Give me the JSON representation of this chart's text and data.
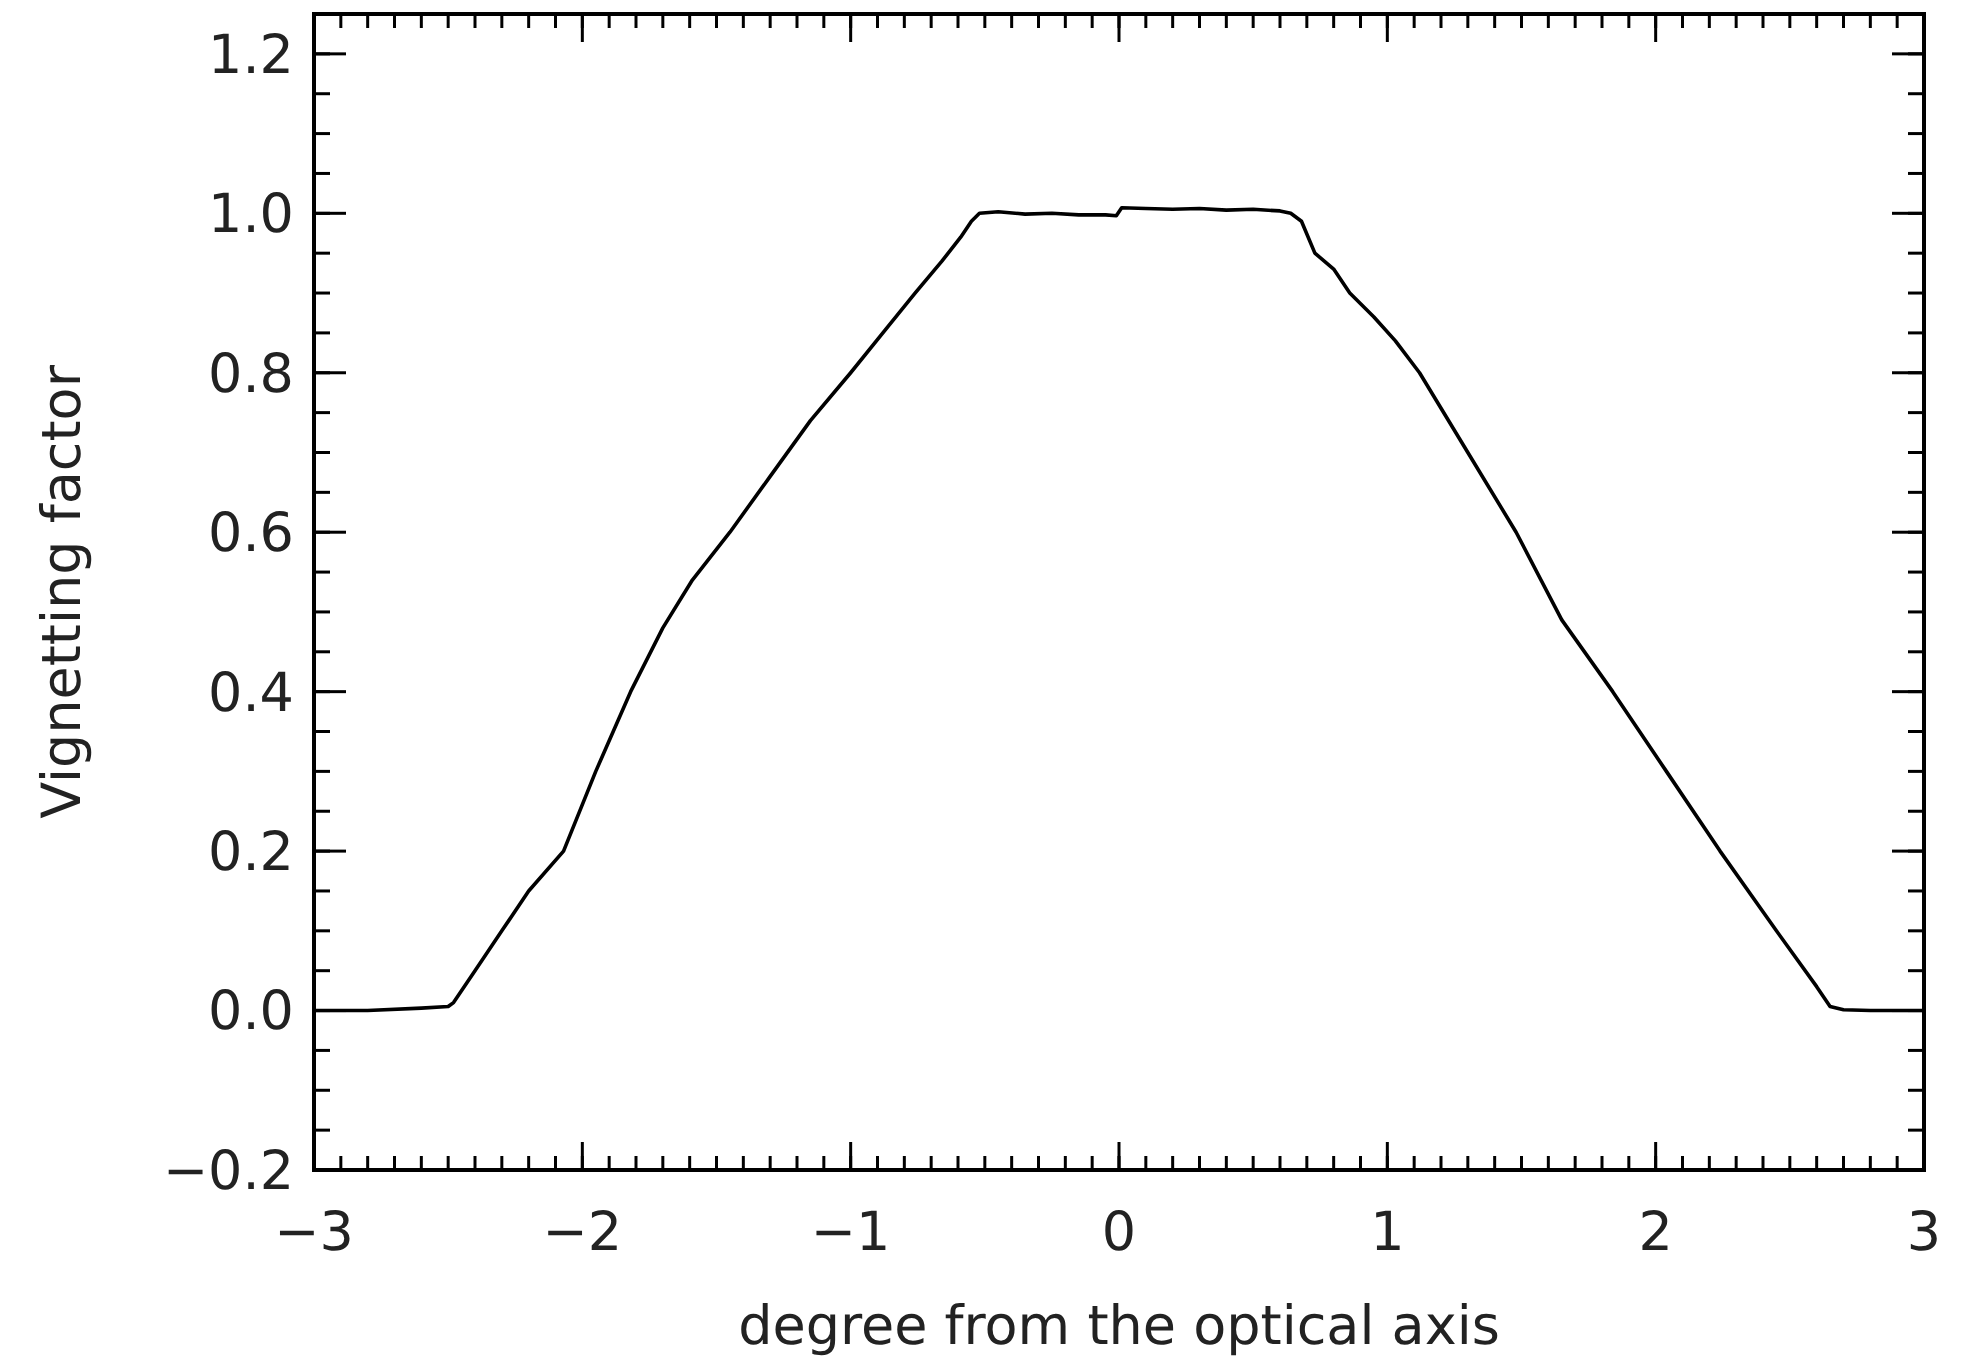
{
  "chart_data": {
    "type": "line",
    "xlabel": "degree from the optical axis",
    "ylabel": "Vignetting factor",
    "x": [
      -3,
      -2.8,
      -2.6,
      -2.5,
      -2.48,
      -2.4,
      -2.3,
      -2.2,
      -2.07,
      -1.95,
      -1.82,
      -1.7,
      -1.59,
      -1.45,
      -1.3,
      -1.15,
      -1,
      -0.88,
      -0.76,
      -0.66,
      -0.59,
      -0.55,
      -0.52,
      -0.45,
      -0.35,
      -0.25,
      -0.15,
      -0.05,
      -0.01,
      0.01,
      0.1,
      0.2,
      0.3,
      0.4,
      0.5,
      0.6,
      0.64,
      0.68,
      0.73,
      0.8,
      0.86,
      0.95,
      1.03,
      1.12,
      1.3,
      1.48,
      1.65,
      1.84,
      2.04,
      2.24,
      2.45,
      2.6,
      2.65,
      2.7,
      2.8,
      3
    ],
    "values": [
      0,
      0,
      0.003,
      0.005,
      0.01,
      0.05,
      0.1,
      0.15,
      0.2,
      0.3,
      0.4,
      0.48,
      0.54,
      0.6,
      0.67,
      0.74,
      0.8,
      0.85,
      0.9,
      0.94,
      0.97,
      0.99,
      1.0,
      1.002,
      0.999,
      1.0,
      0.998,
      0.998,
      0.997,
      1.007,
      1.006,
      1.005,
      1.006,
      1.004,
      1.005,
      1.003,
      1.0,
      0.99,
      0.95,
      0.93,
      0.9,
      0.87,
      0.84,
      0.8,
      0.7,
      0.6,
      0.49,
      0.4,
      0.3,
      0.2,
      0.1,
      0.03,
      0.005,
      0.001,
      0,
      0
    ],
    "color": "#000000",
    "xlim": [
      -3,
      3
    ],
    "xticks": [
      {
        "value": -3,
        "label": "−3"
      },
      {
        "value": -2,
        "label": "−2"
      },
      {
        "value": -1,
        "label": "−1"
      },
      0,
      1,
      2,
      3
    ],
    "ylim": [
      -0.2,
      1.25
    ],
    "yticks": [
      {
        "value": -0.2,
        "label": "−0.2"
      },
      {
        "value": 0,
        "label": "0.0"
      },
      {
        "value": 0.2,
        "label": "0.2"
      },
      {
        "value": 0.4,
        "label": "0.4"
      },
      {
        "value": 0.6,
        "label": "0.6"
      },
      {
        "value": 0.8,
        "label": "0.8"
      },
      {
        "value": 1,
        "label": "1.0"
      },
      {
        "value": 1.2,
        "label": "1.2"
      }
    ],
    "grid": false,
    "line_style": "solid"
  }
}
